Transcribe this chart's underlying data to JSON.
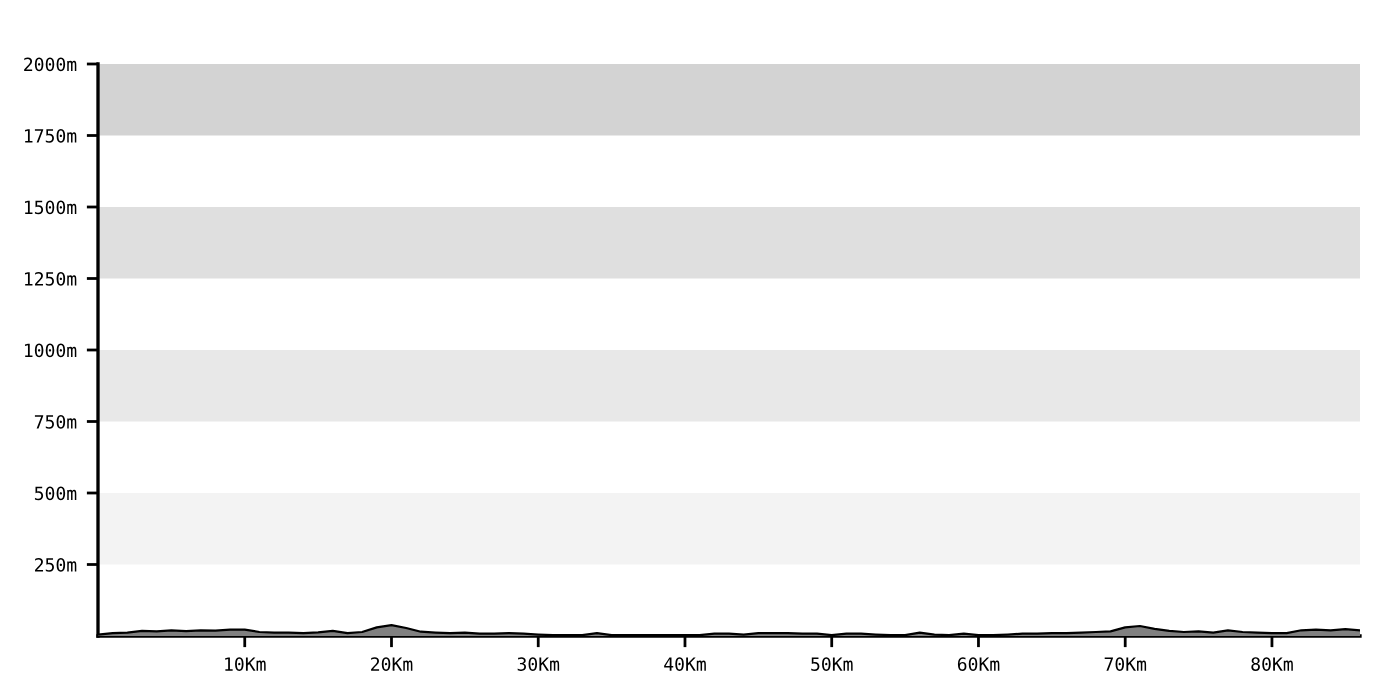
{
  "chart_data": {
    "type": "area",
    "x": [
      0,
      1,
      2,
      3,
      4,
      5,
      6,
      7,
      8,
      9,
      10,
      11,
      12,
      13,
      14,
      15,
      16,
      17,
      18,
      19,
      20,
      21,
      22,
      23,
      24,
      25,
      26,
      27,
      28,
      29,
      30,
      31,
      32,
      33,
      34,
      35,
      36,
      37,
      38,
      39,
      40,
      41,
      42,
      43,
      44,
      45,
      46,
      47,
      48,
      49,
      50,
      51,
      52,
      53,
      54,
      55,
      56,
      57,
      58,
      59,
      60,
      61,
      62,
      63,
      64,
      65,
      66,
      67,
      68,
      69,
      70,
      71,
      72,
      73,
      74,
      75,
      76,
      77,
      78,
      79,
      80,
      81,
      82,
      83,
      84,
      85,
      86
    ],
    "series": [
      {
        "color": "#808080",
        "values": [
          5,
          10,
          12,
          18,
          16,
          20,
          17,
          20,
          19,
          22,
          22,
          14,
          12,
          12,
          10,
          13,
          18,
          10,
          14,
          30,
          38,
          28,
          15,
          12,
          10,
          12,
          8,
          8,
          10,
          8,
          5,
          3,
          3,
          3,
          10,
          3,
          3,
          3,
          3,
          3,
          3,
          3,
          8,
          8,
          5,
          10,
          10,
          10,
          8,
          8,
          3,
          8,
          8,
          5,
          3,
          3,
          12,
          5,
          3,
          8,
          3,
          3,
          5,
          8,
          8,
          10,
          10,
          12,
          14,
          16,
          30,
          35,
          25,
          18,
          14,
          16,
          12,
          20,
          14,
          12,
          10,
          10,
          20,
          22,
          20,
          24,
          20
        ]
      }
    ],
    "xlim": [
      0,
      86
    ],
    "xticks": [
      {
        "value": 10,
        "label": "10Km"
      },
      {
        "value": 20,
        "label": "20Km"
      },
      {
        "value": 30,
        "label": "30Km"
      },
      {
        "value": 40,
        "label": "40Km"
      },
      {
        "value": 50,
        "label": "50Km"
      },
      {
        "value": 60,
        "label": "60Km"
      },
      {
        "value": 70,
        "label": "70Km"
      },
      {
        "value": 80,
        "label": "80Km"
      }
    ],
    "ylim": [
      0,
      2000
    ],
    "yticks": [
      {
        "value": 250,
        "label": "250m"
      },
      {
        "value": 500,
        "label": "500m"
      },
      {
        "value": 750,
        "label": "750m"
      },
      {
        "value": 1000,
        "label": "1000m"
      },
      {
        "value": 1250,
        "label": "1250m"
      },
      {
        "value": 1500,
        "label": "1500m"
      },
      {
        "value": 1750,
        "label": "1750m"
      },
      {
        "value": 2000,
        "label": "2000m"
      }
    ],
    "bands": [
      {
        "axis": "y",
        "from": 250,
        "to": 500,
        "color": "#f3f3f3"
      },
      {
        "axis": "y",
        "from": 750,
        "to": 1000,
        "color": "#e8e8e8"
      },
      {
        "axis": "y",
        "from": 1250,
        "to": 1500,
        "color": "#dfdfdf"
      },
      {
        "axis": "y",
        "from": 1750,
        "to": 2000,
        "color": "#d3d3d3"
      }
    ],
    "grid": false,
    "legend": false
  }
}
